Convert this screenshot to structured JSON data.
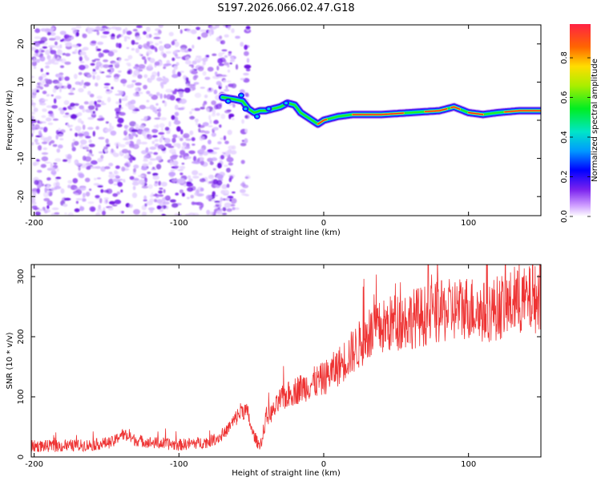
{
  "title": "S197.2026.066.02.47.G18",
  "chart_data": [
    {
      "type": "heatmap",
      "title": "S197.2026.066.02.47.G18",
      "xlabel": "Height of straight line (km)",
      "ylabel": "Frequency (Hz)",
      "xlim": [
        -202,
        150
      ],
      "ylim": [
        -25,
        25
      ],
      "xticks": [
        -200,
        -100,
        0,
        100
      ],
      "yticks": [
        -20,
        -10,
        0,
        10,
        20
      ],
      "tone_track": {
        "x": [
          -70,
          -62,
          -56,
          -52,
          -48,
          -44,
          -40,
          -35,
          -30,
          -25,
          -20,
          -16,
          -12,
          -8,
          -4,
          0,
          5,
          10,
          20,
          40,
          60,
          80,
          90,
          100,
          110,
          120,
          135,
          150
        ],
        "freq": [
          6,
          5.5,
          5,
          3,
          2,
          2.5,
          2.5,
          3,
          3.5,
          4.5,
          4,
          2,
          1,
          0,
          -1,
          0,
          0.5,
          1,
          1.5,
          1.5,
          2,
          2.5,
          3.5,
          2,
          1.5,
          2,
          2.5,
          2.5
        ]
      },
      "colorbar": {
        "label": "Normalized spectral amplitude",
        "ticks": [
          "0.0",
          "0.2",
          "0.4",
          "0.6",
          "0.8"
        ],
        "range": [
          0,
          0.97
        ]
      }
    },
    {
      "type": "line",
      "xlabel": "Height of straight line (km)",
      "ylabel": "SNR (10 * v/v)",
      "xlim": [
        -202,
        150
      ],
      "ylim": [
        0,
        320
      ],
      "xticks": [
        -200,
        -100,
        0,
        100
      ],
      "yticks": [
        0,
        100,
        200,
        300
      ],
      "series": [
        {
          "name": "SNR",
          "color": "#ee3333",
          "x": [
            -202,
            -180,
            -160,
            -145,
            -140,
            -130,
            -120,
            -100,
            -80,
            -70,
            -62,
            -56,
            -52,
            -50,
            -45,
            -42,
            -40,
            -35,
            -30,
            -20,
            -10,
            0,
            10,
            20,
            30,
            40,
            50,
            60,
            70,
            80,
            90,
            100,
            110,
            120,
            130,
            140,
            150
          ],
          "values": [
            18,
            18,
            20,
            25,
            38,
            28,
            24,
            20,
            25,
            35,
            60,
            80,
            70,
            45,
            20,
            30,
            65,
            75,
            95,
            110,
            120,
            130,
            150,
            175,
            200,
            215,
            225,
            230,
            235,
            240,
            245,
            250,
            240,
            248,
            255,
            260,
            265
          ]
        }
      ]
    }
  ]
}
